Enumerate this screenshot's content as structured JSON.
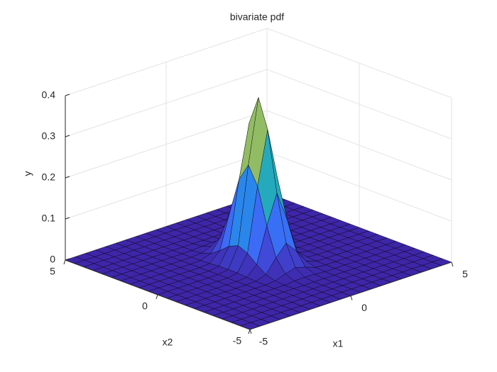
{
  "chart_data": {
    "type": "surface",
    "title": "bivariate pdf",
    "x_label": "x1",
    "x2_label": "x2",
    "y_label": "y",
    "colormap": "parula",
    "edge_color": "#000000",
    "grid": true,
    "x1": [
      -5,
      -4.5,
      -4,
      -3.5,
      -3,
      -2.5,
      -2,
      -1.5,
      -1,
      -0.5,
      0,
      0.5,
      1,
      1.5,
      2,
      2.5,
      3,
      3.5,
      4,
      4.5,
      5
    ],
    "x2": [
      -5,
      -4.5,
      -4,
      -3.5,
      -3,
      -2.5,
      -2,
      -1.5,
      -1,
      -0.5,
      0,
      0.5,
      1,
      1.5,
      2,
      2.5,
      3,
      3.5,
      4,
      4.5,
      5
    ],
    "z": [
      [
        0,
        0,
        0,
        0,
        0,
        0,
        0,
        0,
        0,
        0,
        0,
        0,
        0,
        0,
        0,
        0,
        0,
        0,
        0,
        0,
        0
      ],
      [
        0,
        0,
        0,
        0,
        0,
        0,
        0,
        0,
        0,
        0,
        0,
        0,
        0,
        0,
        0,
        0,
        0,
        0,
        0,
        0,
        0
      ],
      [
        0,
        0,
        0,
        0,
        0,
        0,
        0,
        0,
        0,
        0,
        0,
        0,
        0,
        0,
        0,
        0,
        0,
        0,
        0,
        0,
        0
      ],
      [
        0,
        0,
        0,
        0,
        0,
        0,
        0,
        0,
        0,
        0,
        0,
        0,
        0,
        0,
        0,
        0,
        0,
        0,
        0,
        0,
        0
      ],
      [
        0,
        0,
        0,
        0,
        0,
        0,
        0,
        0,
        0,
        0,
        0,
        0,
        0,
        0,
        0,
        0,
        0,
        0,
        0,
        0,
        0
      ],
      [
        0,
        0,
        0,
        0,
        0,
        0,
        0,
        0,
        0,
        0.002,
        0.003,
        0.002,
        0,
        0,
        0,
        0,
        0,
        0,
        0,
        0,
        0
      ],
      [
        0,
        0,
        0,
        0,
        0,
        0,
        0,
        0,
        0.002,
        0.011,
        0.018,
        0.011,
        0.002,
        0,
        0,
        0,
        0,
        0,
        0,
        0,
        0
      ],
      [
        0,
        0,
        0,
        0,
        0,
        0,
        0,
        0.001,
        0.009,
        0.042,
        0.069,
        0.042,
        0.009,
        0.001,
        0,
        0,
        0,
        0,
        0,
        0,
        0
      ],
      [
        0,
        0,
        0,
        0,
        0,
        0,
        0,
        0.002,
        0.025,
        0.111,
        0.182,
        0.111,
        0.025,
        0.002,
        0,
        0,
        0,
        0,
        0,
        0,
        0
      ],
      [
        0,
        0,
        0,
        0,
        0,
        0,
        0,
        0.004,
        0.044,
        0.199,
        0.328,
        0.199,
        0.044,
        0.004,
        0,
        0,
        0,
        0,
        0,
        0,
        0
      ],
      [
        0,
        0,
        0,
        0,
        0,
        0,
        0,
        0.004,
        0.054,
        0.242,
        0.398,
        0.242,
        0.054,
        0.004,
        0,
        0,
        0,
        0,
        0,
        0,
        0
      ],
      [
        0,
        0,
        0,
        0,
        0,
        0,
        0,
        0.004,
        0.044,
        0.199,
        0.328,
        0.199,
        0.044,
        0.004,
        0,
        0,
        0,
        0,
        0,
        0,
        0
      ],
      [
        0,
        0,
        0,
        0,
        0,
        0,
        0,
        0.002,
        0.025,
        0.111,
        0.182,
        0.111,
        0.025,
        0.002,
        0,
        0,
        0,
        0,
        0,
        0,
        0
      ],
      [
        0,
        0,
        0,
        0,
        0,
        0,
        0,
        0.001,
        0.009,
        0.042,
        0.069,
        0.042,
        0.009,
        0.001,
        0,
        0,
        0,
        0,
        0,
        0,
        0
      ],
      [
        0,
        0,
        0,
        0,
        0,
        0,
        0,
        0,
        0.002,
        0.011,
        0.018,
        0.011,
        0.002,
        0,
        0,
        0,
        0,
        0,
        0,
        0,
        0
      ],
      [
        0,
        0,
        0,
        0,
        0,
        0,
        0,
        0,
        0,
        0.002,
        0.003,
        0.002,
        0,
        0,
        0,
        0,
        0,
        0,
        0,
        0,
        0
      ],
      [
        0,
        0,
        0,
        0,
        0,
        0,
        0,
        0,
        0,
        0,
        0,
        0,
        0,
        0,
        0,
        0,
        0,
        0,
        0,
        0,
        0
      ],
      [
        0,
        0,
        0,
        0,
        0,
        0,
        0,
        0,
        0,
        0,
        0,
        0,
        0,
        0,
        0,
        0,
        0,
        0,
        0,
        0,
        0
      ],
      [
        0,
        0,
        0,
        0,
        0,
        0,
        0,
        0,
        0,
        0,
        0,
        0,
        0,
        0,
        0,
        0,
        0,
        0,
        0,
        0,
        0
      ],
      [
        0,
        0,
        0,
        0,
        0,
        0,
        0,
        0,
        0,
        0,
        0,
        0,
        0,
        0,
        0,
        0,
        0,
        0,
        0,
        0,
        0
      ],
      [
        0,
        0,
        0,
        0,
        0,
        0,
        0,
        0,
        0,
        0,
        0,
        0,
        0,
        0,
        0,
        0,
        0,
        0,
        0,
        0,
        0
      ]
    ],
    "x1lim": [
      -5,
      5
    ],
    "x1ticks": [
      -5,
      0,
      5
    ],
    "x2lim": [
      -5,
      5
    ],
    "x2ticks": [
      -5,
      0,
      5
    ],
    "ylim": [
      0,
      0.4
    ],
    "yticks": [
      0,
      0.1,
      0.2,
      0.3,
      0.4
    ]
  }
}
